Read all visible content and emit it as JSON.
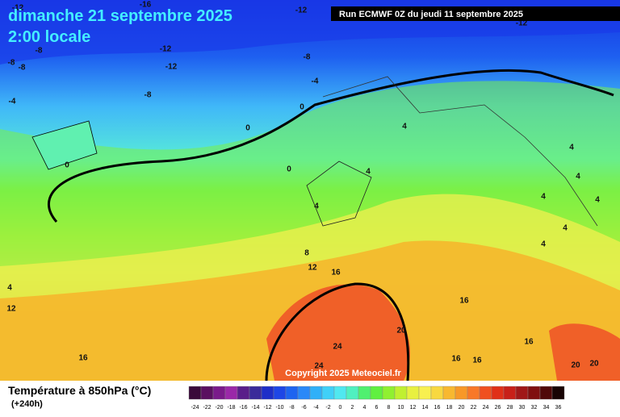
{
  "header": {
    "date": "dimanche 21 septembre 2025",
    "time": "2:00 locale",
    "run": "Run ECMWF 0Z du jeudi 11 septembre 2025"
  },
  "map": {
    "copyright": "Copyright 2025 Meteociel.fr",
    "contour_labels": [
      -12,
      -16,
      -12,
      -12,
      -8,
      -8,
      -8,
      -12,
      -12,
      -8,
      -4,
      -8,
      -4,
      0,
      0,
      0,
      0,
      4,
      4,
      4,
      4,
      4,
      4,
      4,
      4,
      4,
      8,
      12,
      16,
      4,
      12,
      16,
      20,
      16,
      24,
      16,
      16,
      24,
      20,
      20,
      16
    ]
  },
  "legend": {
    "title": "Température à 850hPa (°C)",
    "lead": "(+240h)",
    "labels": [
      -24,
      -22,
      -20,
      -18,
      -16,
      -14,
      -12,
      -10,
      -8,
      -6,
      -4,
      -2,
      0,
      2,
      4,
      6,
      8,
      10,
      12,
      14,
      16,
      18,
      20,
      22,
      24,
      26,
      28,
      30,
      32,
      34,
      36
    ],
    "colors": [
      "#3a0a3a",
      "#5a1060",
      "#7a1a8a",
      "#9a28a8",
      "#5a1e8a",
      "#3a2a9a",
      "#1e2ec8",
      "#1e46e6",
      "#1e64f0",
      "#2a88f8",
      "#30b0f8",
      "#40d0f8",
      "#50e8f0",
      "#50f0c0",
      "#50f070",
      "#60f040",
      "#90f030",
      "#c0f030",
      "#e8f040",
      "#f8f050",
      "#f8d840",
      "#f8b830",
      "#f89828",
      "#f87828",
      "#f05020",
      "#e03018",
      "#c82018",
      "#a01818",
      "#801010",
      "#500808",
      "#180404"
    ]
  }
}
